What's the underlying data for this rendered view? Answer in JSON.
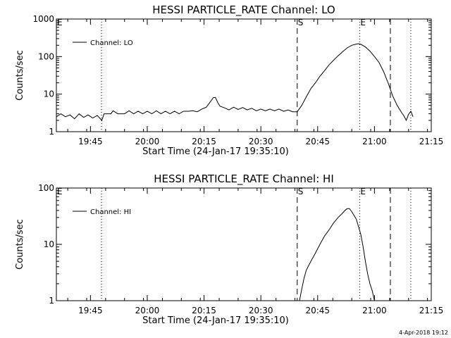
{
  "footer": {
    "timestamp": "4-Apr-2018 19:12"
  },
  "chart_data": [
    {
      "type": "line",
      "title": "HESSI PARTICLE_RATE Channel: LO",
      "xlabel": "Start Time (24-Jan-17 19:35:10)",
      "ylabel": "Counts/sec",
      "yscale": "log",
      "ylim": [
        1,
        1000
      ],
      "xlim": [
        19.6,
        21.25
      ],
      "x_unit": "hours (UT)",
      "x_ticks": [
        {
          "value": 19.75,
          "label": "19:45"
        },
        {
          "value": 20.0,
          "label": "20:00"
        },
        {
          "value": 20.25,
          "label": "20:15"
        },
        {
          "value": 20.5,
          "label": "20:30"
        },
        {
          "value": 20.75,
          "label": "20:45"
        },
        {
          "value": 21.0,
          "label": "21:00"
        },
        {
          "value": 21.25,
          "label": "21:15"
        }
      ],
      "y_ticks": [
        {
          "value": 1,
          "label": "1"
        },
        {
          "value": 10,
          "label": "10"
        },
        {
          "value": 100,
          "label": "100"
        },
        {
          "value": 1000,
          "label": "1000"
        }
      ],
      "legend": {
        "position": "top-left",
        "entries": [
          "Channel: LO"
        ]
      },
      "markers": [
        {
          "label": "E",
          "x": 19.6,
          "style": "none"
        },
        {
          "label": "",
          "x": 19.799,
          "style": "dotted"
        },
        {
          "label": "S",
          "x": 20.66,
          "style": "dashed"
        },
        {
          "label": "E",
          "x": 20.935,
          "style": "dotted"
        },
        {
          "label": "",
          "x": 21.07,
          "style": "dashed"
        },
        {
          "label": "",
          "x": 21.16,
          "style": "dotted"
        }
      ],
      "series": [
        {
          "name": "Channel: LO",
          "points": [
            [
              19.6,
              2.5
            ],
            [
              19.62,
              3.0
            ],
            [
              19.64,
              2.5
            ],
            [
              19.66,
              2.8
            ],
            [
              19.68,
              2.2
            ],
            [
              19.7,
              3.0
            ],
            [
              19.72,
              2.4
            ],
            [
              19.74,
              2.8
            ],
            [
              19.76,
              2.3
            ],
            [
              19.78,
              2.7
            ],
            [
              19.8,
              2.0
            ],
            [
              19.81,
              3.0
            ],
            [
              19.84,
              3.0
            ],
            [
              19.85,
              3.6
            ],
            [
              19.87,
              3.0
            ],
            [
              19.9,
              3.0
            ],
            [
              19.92,
              3.6
            ],
            [
              19.94,
              3.0
            ],
            [
              19.96,
              3.5
            ],
            [
              19.98,
              3.0
            ],
            [
              20.0,
              3.5
            ],
            [
              20.02,
              3.0
            ],
            [
              20.04,
              3.6
            ],
            [
              20.06,
              3.0
            ],
            [
              20.08,
              3.5
            ],
            [
              20.1,
              3.0
            ],
            [
              20.12,
              3.5
            ],
            [
              20.14,
              3.0
            ],
            [
              20.16,
              3.5
            ],
            [
              20.18,
              3.5
            ],
            [
              20.2,
              3.6
            ],
            [
              20.22,
              3.4
            ],
            [
              20.24,
              4.0
            ],
            [
              20.26,
              4.5
            ],
            [
              20.28,
              6.5
            ],
            [
              20.29,
              8.0
            ],
            [
              20.3,
              8.2
            ],
            [
              20.31,
              6.0
            ],
            [
              20.32,
              4.8
            ],
            [
              20.34,
              4.3
            ],
            [
              20.36,
              3.8
            ],
            [
              20.38,
              4.5
            ],
            [
              20.4,
              3.9
            ],
            [
              20.42,
              4.4
            ],
            [
              20.44,
              3.8
            ],
            [
              20.46,
              4.2
            ],
            [
              20.48,
              3.6
            ],
            [
              20.5,
              4.0
            ],
            [
              20.52,
              3.6
            ],
            [
              20.54,
              4.0
            ],
            [
              20.56,
              3.6
            ],
            [
              20.58,
              4.0
            ],
            [
              20.6,
              3.5
            ],
            [
              20.62,
              3.8
            ],
            [
              20.64,
              3.4
            ],
            [
              20.66,
              3.4
            ],
            [
              20.68,
              5.0
            ],
            [
              20.7,
              8.5
            ],
            [
              20.72,
              14.0
            ],
            [
              20.74,
              20.0
            ],
            [
              20.76,
              30.0
            ],
            [
              20.78,
              42.0
            ],
            [
              20.8,
              60.0
            ],
            [
              20.82,
              80.0
            ],
            [
              20.84,
              105.0
            ],
            [
              20.86,
              135.0
            ],
            [
              20.88,
              170.0
            ],
            [
              20.9,
              200.0
            ],
            [
              20.92,
              215.0
            ],
            [
              20.93,
              220.0
            ],
            [
              20.94,
              212.0
            ],
            [
              20.96,
              180.0
            ],
            [
              20.98,
              140.0
            ],
            [
              21.0,
              100.0
            ],
            [
              21.02,
              70.0
            ],
            [
              21.04,
              40.0
            ],
            [
              21.06,
              20.0
            ],
            [
              21.08,
              9.0
            ],
            [
              21.1,
              5.0
            ],
            [
              21.12,
              3.2
            ],
            [
              21.13,
              2.6
            ],
            [
              21.14,
              2.0
            ],
            [
              21.15,
              2.9
            ],
            [
              21.16,
              3.5
            ],
            [
              21.17,
              2.5
            ]
          ]
        }
      ]
    },
    {
      "type": "line",
      "title": "HESSI PARTICLE_RATE Channel: HI",
      "xlabel": "Start Time (24-Jan-17 19:35:10)",
      "ylabel": "Counts/sec",
      "yscale": "log",
      "ylim": [
        1,
        100
      ],
      "xlim": [
        19.6,
        21.25
      ],
      "x_unit": "hours (UT)",
      "x_ticks": [
        {
          "value": 19.75,
          "label": "19:45"
        },
        {
          "value": 20.0,
          "label": "20:00"
        },
        {
          "value": 20.25,
          "label": "20:15"
        },
        {
          "value": 20.5,
          "label": "20:30"
        },
        {
          "value": 20.75,
          "label": "20:45"
        },
        {
          "value": 21.0,
          "label": "21:00"
        },
        {
          "value": 21.25,
          "label": "21:15"
        }
      ],
      "y_ticks": [
        {
          "value": 1,
          "label": "1"
        },
        {
          "value": 10,
          "label": "10"
        },
        {
          "value": 100,
          "label": "100"
        }
      ],
      "legend": {
        "position": "top-left",
        "entries": [
          "Channel: HI"
        ]
      },
      "markers": [
        {
          "label": "E",
          "x": 19.6,
          "style": "none"
        },
        {
          "label": "",
          "x": 19.799,
          "style": "dotted"
        },
        {
          "label": "S",
          "x": 20.66,
          "style": "dashed"
        },
        {
          "label": "E",
          "x": 20.935,
          "style": "dotted"
        },
        {
          "label": "",
          "x": 21.07,
          "style": "dashed"
        },
        {
          "label": "",
          "x": 21.16,
          "style": "dotted"
        }
      ],
      "series": [
        {
          "name": "Channel: HI",
          "points": [
            [
              20.67,
              1.0
            ],
            [
              20.68,
              1.6
            ],
            [
              20.69,
              2.5
            ],
            [
              20.7,
              3.5
            ],
            [
              20.72,
              5.0
            ],
            [
              20.74,
              7.0
            ],
            [
              20.76,
              10.0
            ],
            [
              20.78,
              14.0
            ],
            [
              20.8,
              18.0
            ],
            [
              20.82,
              24.0
            ],
            [
              20.84,
              30.0
            ],
            [
              20.86,
              36.0
            ],
            [
              20.87,
              40.0
            ],
            [
              20.88,
              43.0
            ],
            [
              20.89,
              43.0
            ],
            [
              20.9,
              38.0
            ],
            [
              20.92,
              28.0
            ],
            [
              20.94,
              15.0
            ],
            [
              20.95,
              9.0
            ],
            [
              20.96,
              5.0
            ],
            [
              20.97,
              3.0
            ],
            [
              20.98,
              2.0
            ],
            [
              20.99,
              1.5
            ],
            [
              21.0,
              1.0
            ]
          ]
        }
      ]
    }
  ]
}
